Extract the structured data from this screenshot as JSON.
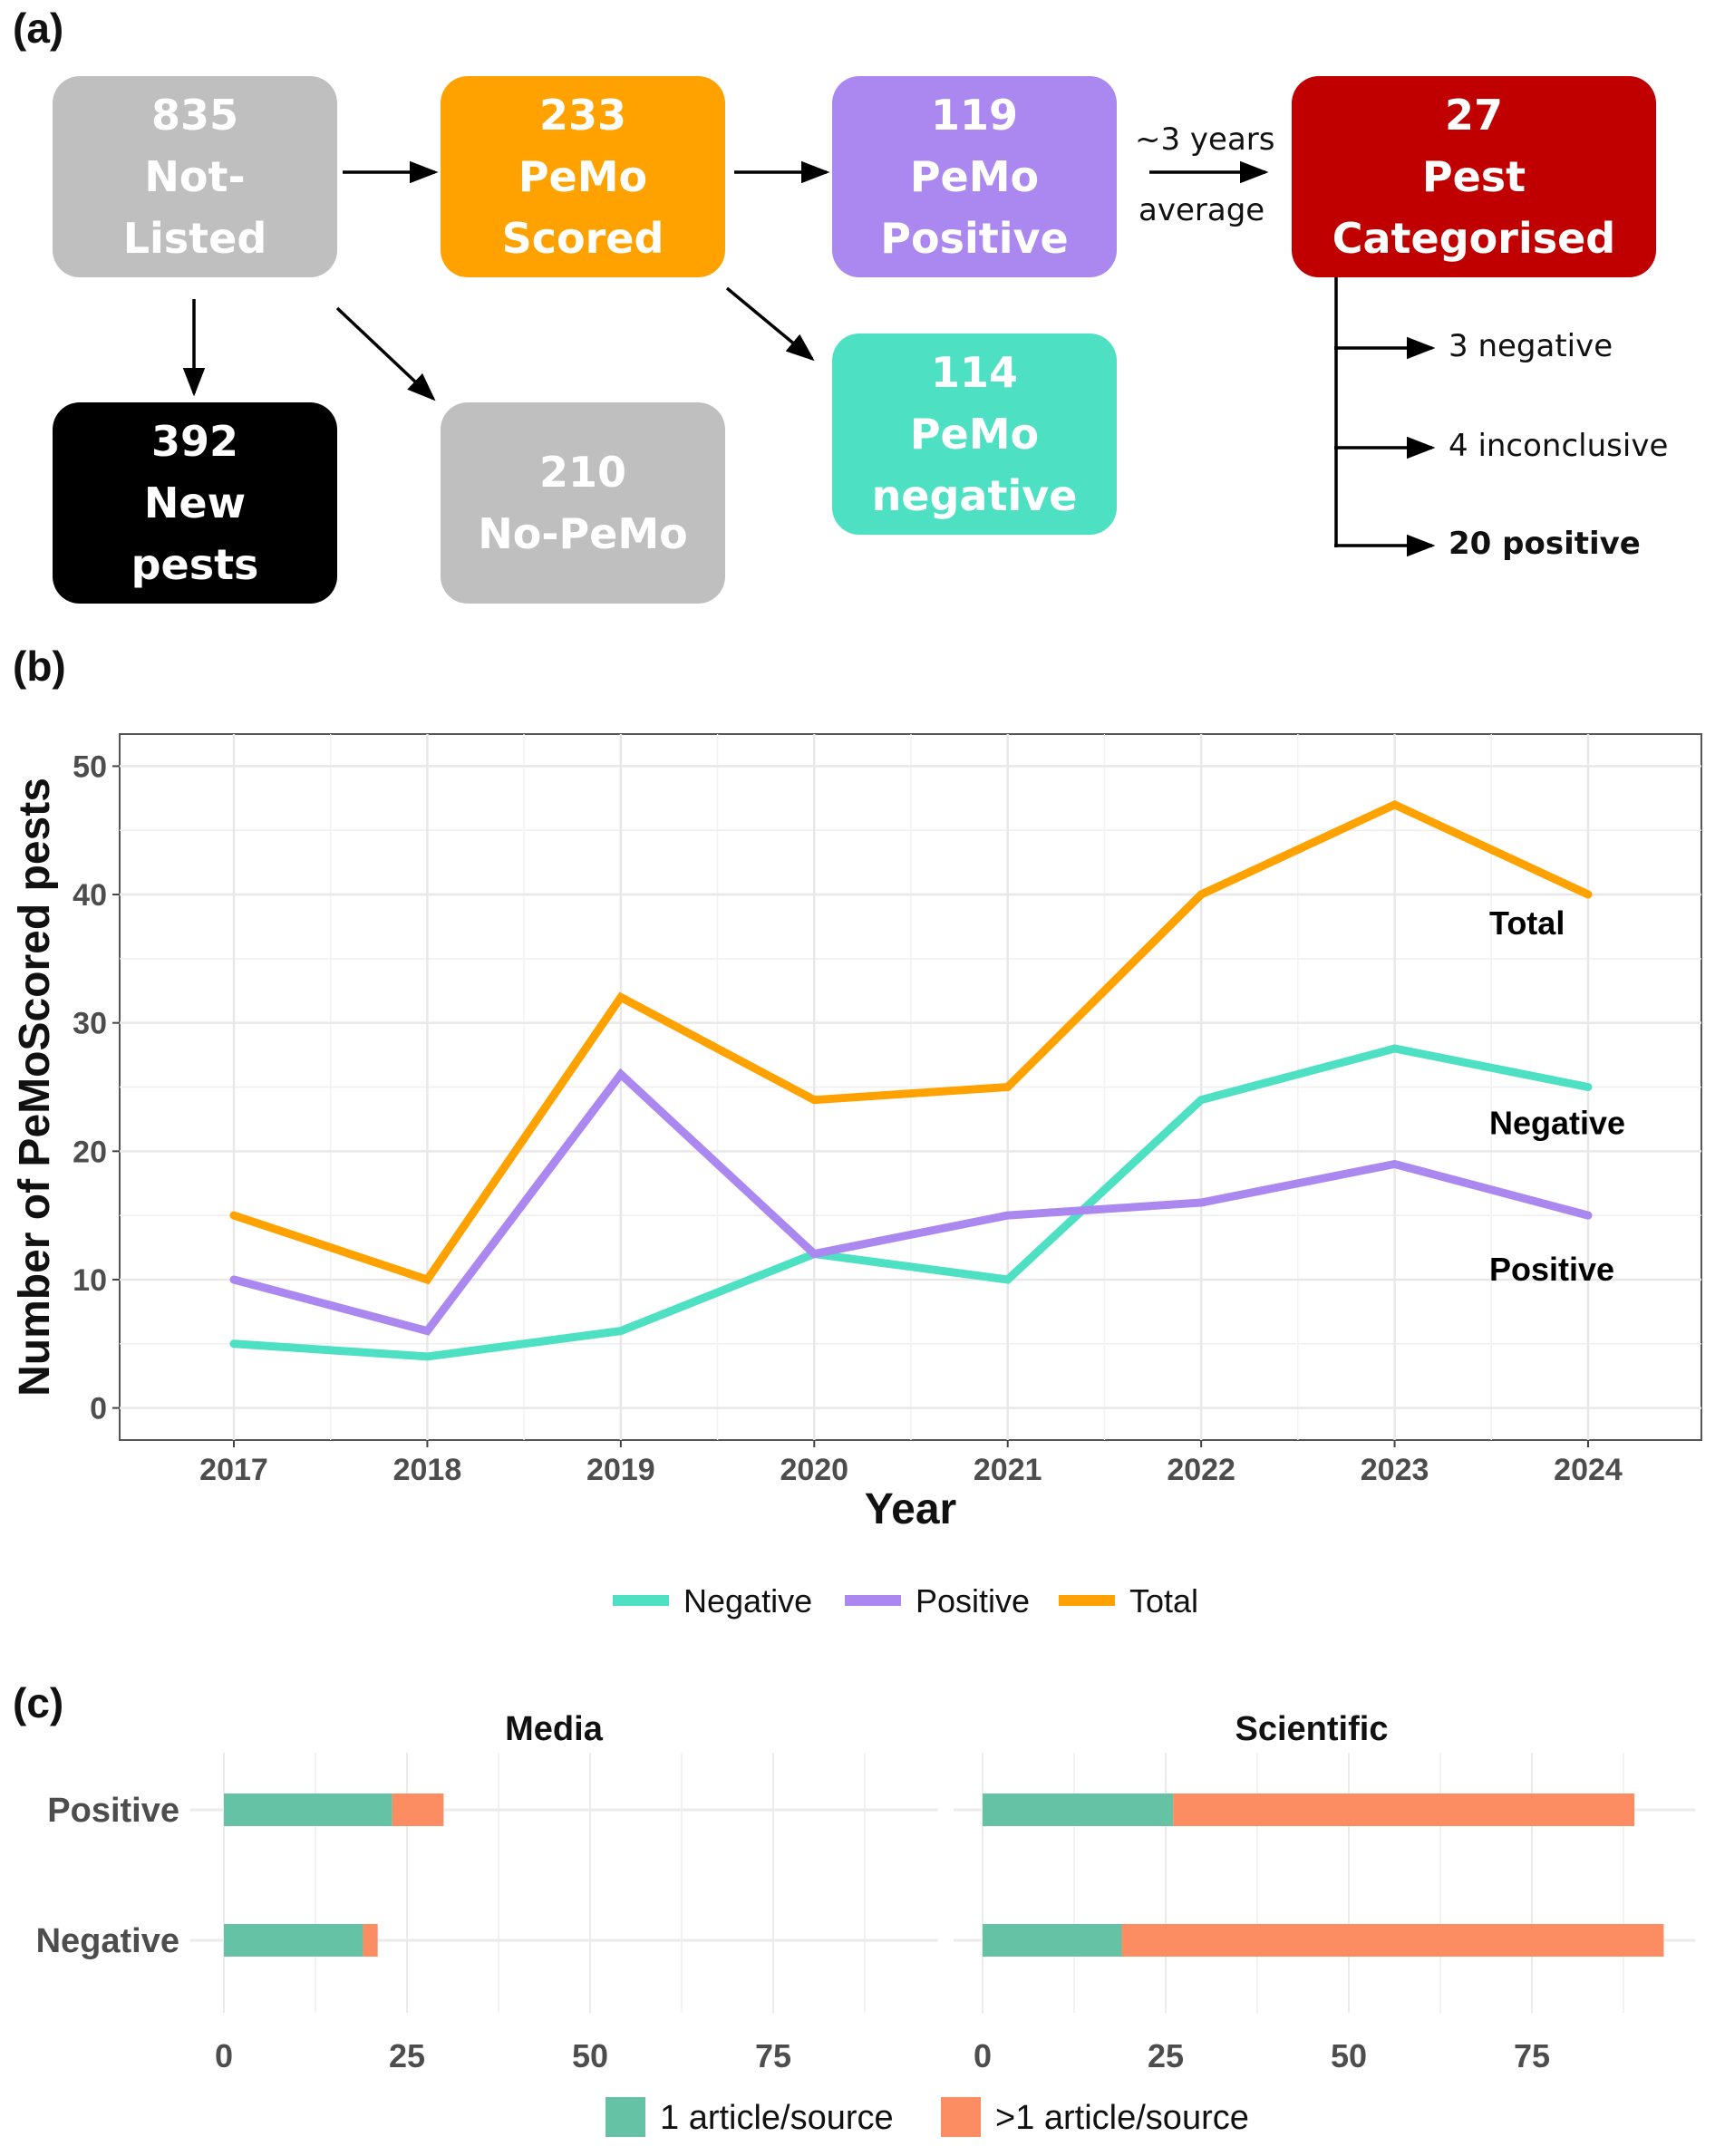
{
  "panels": {
    "a_label": "(a)",
    "b_label": "(b)",
    "c_label": "(c)"
  },
  "flow": {
    "boxes": [
      {
        "id": "not-listed",
        "lines": [
          "835",
          "Not-",
          "Listed"
        ],
        "color": "#bfbfbf"
      },
      {
        "id": "pemo-scored",
        "lines": [
          "233",
          "PeMo",
          "Scored"
        ],
        "color": "#ffa200"
      },
      {
        "id": "pemo-positive",
        "lines": [
          "119",
          "PeMo",
          "Positive"
        ],
        "color": "#ab88f0"
      },
      {
        "id": "pest-categorised",
        "lines": [
          "27",
          "Pest",
          "Categorised"
        ],
        "color": "#c00000"
      },
      {
        "id": "new-pests",
        "lines": [
          "392",
          "New",
          "pests"
        ],
        "color": "#000000"
      },
      {
        "id": "no-pemo",
        "lines": [
          "210",
          "No-PeMo"
        ],
        "color": "#bfbfbf"
      },
      {
        "id": "pemo-negative",
        "lines": [
          "114",
          "PeMo",
          "negative"
        ],
        "color": "#4de0c2"
      }
    ],
    "arrow_label_top": "~3 years",
    "arrow_label_bottom": "average",
    "outcomes": [
      {
        "label": "3 negative",
        "bold": false
      },
      {
        "label": "4 inconclusive",
        "bold": false
      },
      {
        "label": "20 positive",
        "bold": true
      }
    ]
  },
  "chart_data": [
    {
      "type": "line",
      "title": "",
      "xlabel": "Year",
      "ylabel": "Number of PeMoScored pests",
      "x": [
        2017,
        2018,
        2019,
        2020,
        2021,
        2022,
        2023,
        2024
      ],
      "ylim": [
        -2.5,
        52.5
      ],
      "yticks": [
        0,
        10,
        20,
        30,
        40,
        50
      ],
      "grid": true,
      "legend": "bottom",
      "series": [
        {
          "name": "Negative",
          "color": "#4de0c2",
          "values": [
            5,
            4,
            6,
            12,
            10,
            24,
            28,
            25
          ],
          "end_label": "Negative"
        },
        {
          "name": "Positive",
          "color": "#ab88f0",
          "values": [
            10,
            6,
            26,
            12,
            15,
            16,
            19,
            15
          ],
          "end_label": "Positive"
        },
        {
          "name": "Total",
          "color": "#ffa200",
          "values": [
            15,
            10,
            32,
            24,
            25,
            40,
            47,
            40
          ],
          "end_label": "Total"
        }
      ]
    },
    {
      "type": "bar",
      "orientation": "horizontal",
      "stacked": true,
      "facets": [
        "Media",
        "Scientific"
      ],
      "categories": [
        "Positive",
        "Negative"
      ],
      "xticks": [
        0,
        25,
        50,
        75
      ],
      "xlim": [
        0,
        95
      ],
      "grid": true,
      "legend": "bottom",
      "series": [
        {
          "name": "1 article/source",
          "color": "#66c2a5",
          "values": {
            "Media": {
              "Positive": 23,
              "Negative": 19
            },
            "Scientific": {
              "Positive": 26,
              "Negative": 19
            }
          }
        },
        {
          "name": ">1 article/source",
          "color": "#fc8d62",
          "values": {
            "Media": {
              "Positive": 7,
              "Negative": 2
            },
            "Scientific": {
              "Positive": 63,
              "Negative": 74
            }
          }
        }
      ]
    }
  ]
}
